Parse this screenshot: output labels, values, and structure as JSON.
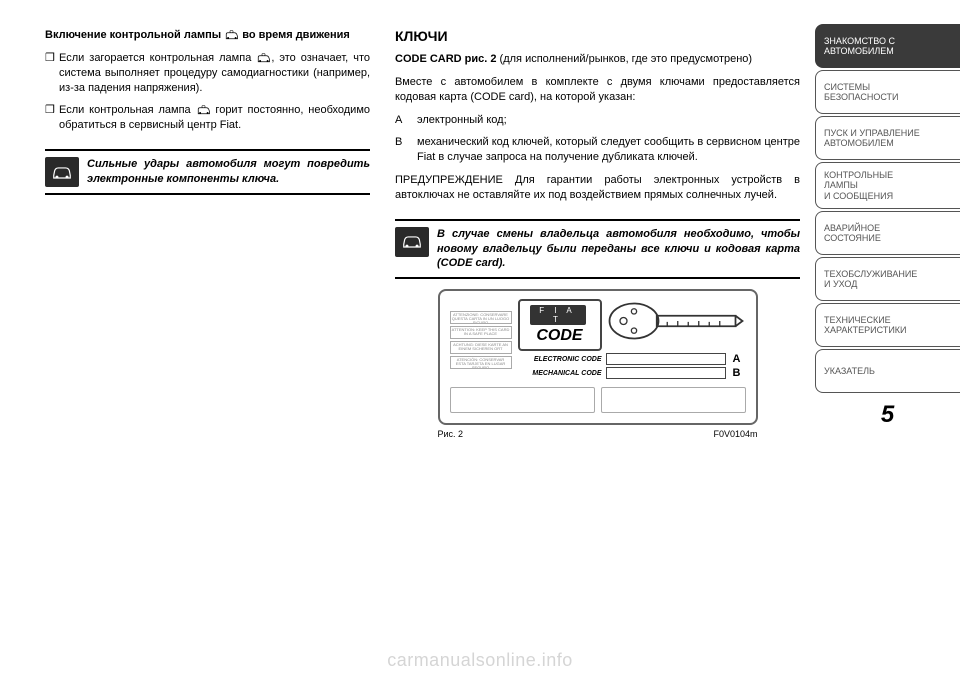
{
  "left": {
    "heading_prefix": "Включение контрольной лампы ",
    "heading_suffix": " во время движения",
    "bullet1_prefix": "Если загорается контрольная лампа ",
    "bullet1_suffix": ", это означает, что система выполняет процедуру самодиагностики (например, из-за падения напряжения).",
    "bullet2_prefix": "Если контрольная лампа ",
    "bullet2_suffix": " горит постоянно, необходимо обратиться в сервисный центр Fiat.",
    "warn": "Сильные удары автомобиля могут повредить электронные компоненты ключа."
  },
  "right": {
    "title": "КЛЮЧИ",
    "codecard_label": "CODE CARD рис. 2",
    "codecard_rest": " (для исполнений/рынков, где это предусмотрено)",
    "para2": "Вместе с автомобилем в комплекте с двумя ключами предоставляется кодовая карта (CODE card), на которой указан:",
    "itemA_letter": "A",
    "itemA_text": "электронный код;",
    "itemB_letter": "B",
    "itemB_text": "механический код ключей, который следует сообщить в сервисном центре Fiat в случае запроса на получение дубликата ключей.",
    "para3": "ПРЕДУПРЕЖДЕНИЕ Для гарантии работы электронных устройств в автоключах не оставляйте их под воздействием прямых солнечных лучей.",
    "warn": "В случае смены владельца автомобиля необходимо, чтобы новому владельцу были переданы все ключи и кодовая карта (CODE card).",
    "card": {
      "brand": "F I A T",
      "code_word": "CODE",
      "line1_label": "ELECTRONIC CODE",
      "line1_letter": "A",
      "line2_label": "MECHANICAL CODE",
      "line2_letter": "B",
      "tiny1": "ATTENZIONE: CONSERVARE QUESTA CARTA IN UN LUOGO SICURO",
      "tiny2": "ATTENTION: KEEP THIS CARD IN A SAFE PLACE",
      "tiny3": "ACHTUNG: DIESE KARTE AN EINEM SICHEREN ORT",
      "tiny4": "ATENCIÓN: CONSERVAR ESTA TARJETA EN LUGAR SEGURO"
    },
    "fig_label": "Рис. 2",
    "fig_code": "F0V0104m"
  },
  "sidebar": [
    {
      "l1": "ЗНАКОМСТВО С",
      "l2": "АВТОМОБИЛЕМ",
      "active": true
    },
    {
      "l1": "СИСТЕМЫ",
      "l2": "БЕЗОПАСНОСТИ",
      "active": false
    },
    {
      "l1": "ПУСК И УПРАВЛЕНИЕ",
      "l2": "АВТОМОБИЛЕМ",
      "active": false
    },
    {
      "l1": "КОНТРОЛЬНЫЕ",
      "l2": "ЛАМПЫ",
      "l3": "И СООБЩЕНИЯ",
      "active": false
    },
    {
      "l1": "АВАРИЙНОЕ",
      "l2": "СОСТОЯНИЕ",
      "active": false
    },
    {
      "l1": "ТЕХОБСЛУЖИВАНИЕ",
      "l2": "И УХОД",
      "active": false
    },
    {
      "l1": "ТЕХНИЧЕСКИЕ",
      "l2": "ХАРАКТЕРИСТИКИ",
      "active": false
    },
    {
      "l1": "УКАЗАТЕЛЬ",
      "l2": "",
      "active": false
    }
  ],
  "page_number": "5",
  "watermark": "carmanualsonline.info",
  "colors": {
    "tab_active_bg": "#3a3a3a",
    "tab_border": "#555555",
    "text": "#000000",
    "watermark": "#d5d5d5"
  }
}
